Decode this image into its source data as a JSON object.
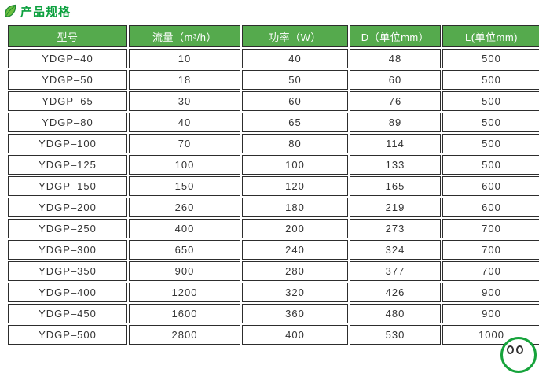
{
  "title": {
    "text": "产品规格",
    "color": "#0ba03e",
    "icon": "leaf-icon"
  },
  "table": {
    "header_bg": "#55aa4d",
    "header_text_color": "#ffffff",
    "border_color": "#2d2d2d",
    "cell_text_color": "#333333",
    "columns": [
      "型号",
      "流量（m³/h）",
      "功率（W）",
      "D（单位mm）",
      "L(单位mm)"
    ],
    "rows": [
      [
        "YDGP–40",
        "10",
        "40",
        "48",
        "500"
      ],
      [
        "YDGP–50",
        "18",
        "50",
        "60",
        "500"
      ],
      [
        "YDGP–65",
        "30",
        "60",
        "76",
        "500"
      ],
      [
        "YDGP–80",
        "40",
        "65",
        "89",
        "500"
      ],
      [
        "YDGP–100",
        "70",
        "80",
        "114",
        "500"
      ],
      [
        "YDGP–125",
        "100",
        "100",
        "133",
        "500"
      ],
      [
        "YDGP–150",
        "150",
        "120",
        "165",
        "600"
      ],
      [
        "YDGP–200",
        "260",
        "180",
        "219",
        "600"
      ],
      [
        "YDGP–250",
        "400",
        "200",
        "273",
        "700"
      ],
      [
        "YDGP–300",
        "650",
        "240",
        "324",
        "700"
      ],
      [
        "YDGP–350",
        "900",
        "280",
        "377",
        "700"
      ],
      [
        "YDGP–400",
        "1200",
        "320",
        "426",
        "900"
      ],
      [
        "YDGP–450",
        "1600",
        "360",
        "480",
        "900"
      ],
      [
        "YDGP–500",
        "2800",
        "400",
        "530",
        "1000"
      ]
    ]
  },
  "watermark": {
    "icon": "partial-circular-logo",
    "ring_color": "#16a33b"
  }
}
